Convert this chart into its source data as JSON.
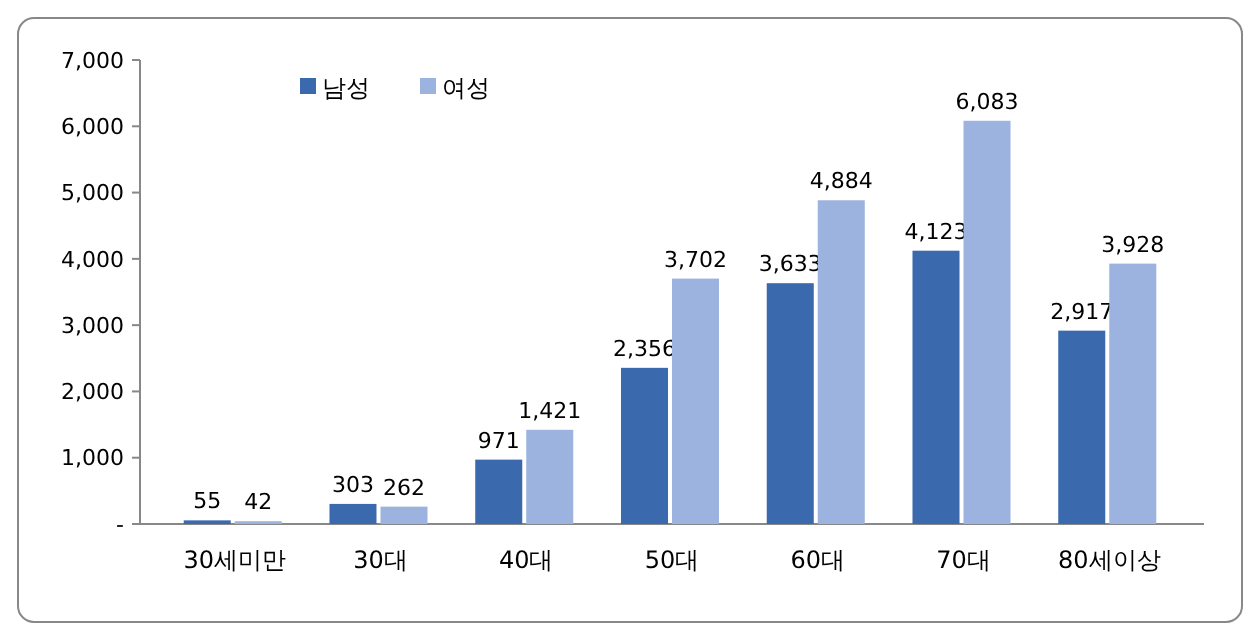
{
  "chart_data": {
    "type": "bar",
    "categories": [
      "30세미만",
      "30대",
      "40대",
      "50대",
      "60대",
      "70대",
      "80세이상"
    ],
    "series": [
      {
        "name": "남성",
        "color": "#3b69ad",
        "values": [
          55,
          303,
          971,
          2356,
          3633,
          4123,
          2917
        ],
        "value_labels": [
          "55",
          "303",
          "971",
          "2,356",
          "3,633",
          "4,123",
          "2,917"
        ]
      },
      {
        "name": "여성",
        "color": "#9bb3de",
        "values": [
          42,
          262,
          1421,
          3702,
          4884,
          6083,
          3928
        ],
        "value_labels": [
          "42",
          "262",
          "1,421",
          "3,702",
          "4,884",
          "6,083",
          "3,928"
        ]
      }
    ],
    "ylim": [
      0,
      7000
    ],
    "yticks": [
      {
        "value": 0,
        "label": "-"
      },
      {
        "value": 1000,
        "label": "1,000"
      },
      {
        "value": 2000,
        "label": "2,000"
      },
      {
        "value": 3000,
        "label": "3,000"
      },
      {
        "value": 4000,
        "label": "4,000"
      },
      {
        "value": 5000,
        "label": "5,000"
      },
      {
        "value": 6000,
        "label": "6,000"
      },
      {
        "value": 7000,
        "label": "7,000"
      }
    ],
    "legend": "top left"
  }
}
